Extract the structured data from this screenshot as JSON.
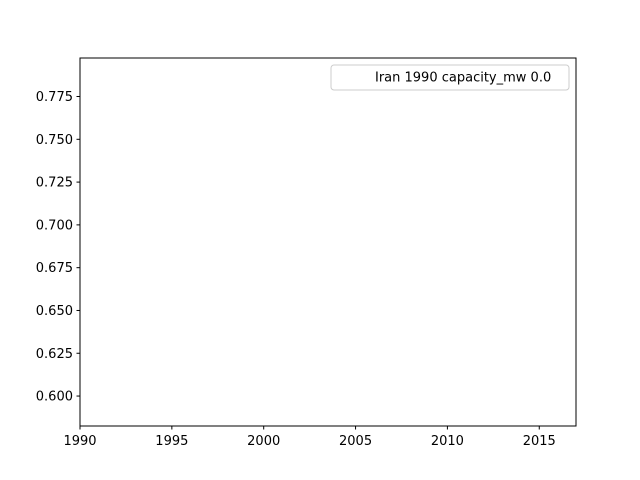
{
  "chart_data": {
    "type": "line",
    "title": "",
    "xlabel": "",
    "ylabel": "",
    "xlim": [
      1990,
      2017
    ],
    "ylim": [
      0.5825,
      0.7975
    ],
    "x_ticks": [
      1990,
      1995,
      2000,
      2005,
      2010,
      2015
    ],
    "y_ticks": [
      0.6,
      0.625,
      0.65,
      0.675,
      0.7,
      0.725,
      0.75,
      0.775
    ],
    "y_tick_labels": [
      "0.600",
      "0.625",
      "0.650",
      "0.675",
      "0.700",
      "0.725",
      "0.750",
      "0.775"
    ],
    "series": [
      {
        "name": "Iran 1990 capacity_mw 0.0",
        "x": [],
        "y": [],
        "color": "#ffffff"
      }
    ],
    "legend": {
      "position": "upper-right"
    },
    "grid": false
  }
}
